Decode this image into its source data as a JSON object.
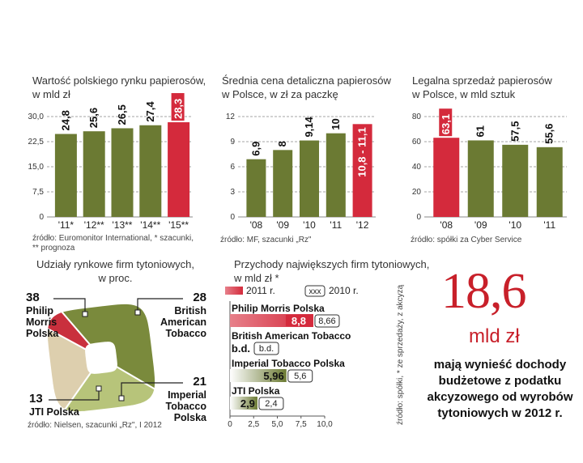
{
  "colors": {
    "bar_green": "#6b7a33",
    "bar_green_light": "#9aa559",
    "bar_red": "#d42a3c",
    "bar_red_light": "#e7808a",
    "accent_red": "#c8202a",
    "pie_philip": "#7a8a3c",
    "pie_bat": "#b7c47a",
    "pie_jti": "#c9303d",
    "pie_imperial": "#ddcfae"
  },
  "chart_data": [
    {
      "id": "market_value",
      "type": "bar",
      "title": "Wartość polskiego rynku papierosów,\nw mld zł",
      "categories": [
        "'11*",
        "'12**",
        "'13**",
        "'14**",
        "'15**"
      ],
      "values": [
        24.8,
        25.6,
        26.5,
        27.4,
        28.3
      ],
      "labels": [
        "24,8",
        "25,6",
        "26,5",
        "27,4",
        "28,3"
      ],
      "highlight": [
        false,
        false,
        false,
        false,
        true
      ],
      "yticks": [
        "0",
        "7,5",
        "15,0",
        "22,5",
        "30,0"
      ],
      "ytick_values": [
        0,
        7.5,
        15,
        22.5,
        30
      ],
      "ylim": [
        0,
        30
      ],
      "grid": true,
      "source": "źródło: Euromonitor International, * szacunki,\n** prognoza"
    },
    {
      "id": "avg_price",
      "type": "bar",
      "title": "Średnia cena detaliczna papierosów\nw Polsce, w zł za paczkę",
      "categories": [
        "'08",
        "'09",
        "'10",
        "'11",
        "'12"
      ],
      "values": [
        6.9,
        8,
        9.14,
        10,
        11.1
      ],
      "labels": [
        "6,9",
        "8",
        "9,14",
        "10",
        "10,8 - 11,1"
      ],
      "highlight": [
        false,
        false,
        false,
        false,
        true
      ],
      "yticks": [
        "0",
        "3",
        "6",
        "9",
        "12"
      ],
      "ytick_values": [
        0,
        3,
        6,
        9,
        12
      ],
      "ylim": [
        0,
        12
      ],
      "grid": true,
      "source": "źródło: MF, szacunki „Rz\""
    },
    {
      "id": "legal_sales",
      "type": "bar",
      "title": "Legalna sprzedaż papierosów\nw Polsce, w mld sztuk",
      "categories": [
        "'08",
        "'09",
        "'10",
        "'11"
      ],
      "values": [
        63.1,
        61,
        57.5,
        55.6
      ],
      "labels": [
        "63,1",
        "61",
        "57,5",
        "55,6"
      ],
      "highlight": [
        true,
        false,
        false,
        false
      ],
      "yticks": [
        "0",
        "20",
        "40",
        "60",
        "80"
      ],
      "ytick_values": [
        0,
        20,
        40,
        60,
        80
      ],
      "ylim": [
        0,
        80
      ],
      "grid": true,
      "source": "źródło: spółki za Cyber Service"
    },
    {
      "id": "market_shares",
      "type": "pie",
      "title": "Udziały rynkowe firm tytoniowych,\nw proc.",
      "slices": [
        {
          "name": "Philip\nMorris\nPolska",
          "value": 38,
          "label": "38"
        },
        {
          "name": "British\nAmerican\nTobacco",
          "value": 28,
          "label": "28"
        },
        {
          "name": "Imperial\nTobacco\nPolska",
          "value": 21,
          "label": "21"
        },
        {
          "name": "JTI Polska",
          "value": 13,
          "label": "13"
        }
      ],
      "source": "źródło: Nielsen, szacunki „Rz\", I 2012"
    },
    {
      "id": "revenues",
      "type": "bar",
      "orientation": "horizontal",
      "title": "Przychody największych firm tytoniowych,\nw mld zł *",
      "legend": {
        "current": "2011 r.",
        "previous": "2010 r.",
        "previous_marker": "xxx"
      },
      "companies": [
        "Philip Morris Polska",
        "British American Tobacco",
        "Imperial Tobacco Polska",
        "JTI Polska"
      ],
      "values_2011": [
        8.8,
        null,
        5.96,
        2.9
      ],
      "labels_2011": [
        "8,8",
        "b.d.",
        "5,96",
        "2,9"
      ],
      "labels_2010": [
        "8,66",
        "b.d.",
        "5,6",
        "2,4"
      ],
      "highlight": [
        true,
        false,
        false,
        false
      ],
      "xticks": [
        "0",
        "2,5",
        "5,0",
        "7,5",
        "10,0"
      ],
      "xtick_values": [
        0,
        2.5,
        5,
        7.5,
        10
      ],
      "xlim": [
        0,
        10
      ],
      "source": "źródło: spółki, * ze sprzedaży, z akcyzą"
    }
  ],
  "highlight_box": {
    "number": "18,6",
    "unit": "mld zł",
    "description": "mają wynieść dochody\nbudżetowe z podatku\nakcyzowego od wyrobów\ntytoniowych w 2012 r."
  }
}
